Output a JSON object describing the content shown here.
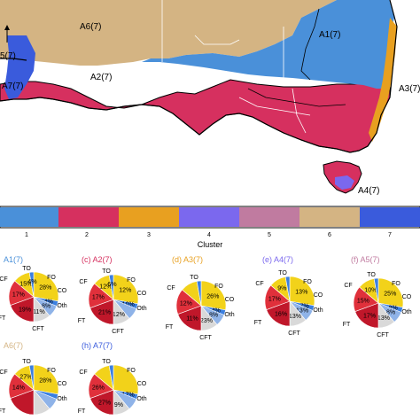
{
  "colors": {
    "cluster": [
      "#4a90d9",
      "#d6305f",
      "#e8a020",
      "#7b68ee",
      "#c07ba0",
      "#d4b483",
      "#3a5bdc"
    ],
    "coast": "#000000",
    "border": "#ffffff",
    "CF": "#f2d21a",
    "TO": "#f2d21a",
    "FO": "#3b7fe0",
    "CO": "#8fb3e8",
    "Oth": "#d9d9d9",
    "CFT": "#c0172a",
    "FT": "#e0303b"
  },
  "map": {
    "region_labels": [
      {
        "id": "A6",
        "text": "A6(7)"
      },
      {
        "id": "A1",
        "text": "A1(7)"
      },
      {
        "id": "A2",
        "text": "A2(7)"
      },
      {
        "id": "A3",
        "text": "A3(7)"
      },
      {
        "id": "A4",
        "text": "A4(7)"
      },
      {
        "id": "A7",
        "text": "A7(7)"
      },
      {
        "id": "A5",
        "text": "5(7)"
      }
    ]
  },
  "colorbar": {
    "ticks": [
      "1",
      "2",
      "3",
      "4",
      "5",
      "6",
      "7"
    ],
    "label": "Cluster"
  },
  "pies": [
    {
      "letter": "",
      "title": "A1(7)",
      "title_color": "#4a90d9",
      "slices": [
        {
          "cat": "TO",
          "pct": "28%"
        },
        {
          "cat": "FO",
          "pct": "4%"
        },
        {
          "cat": "CO",
          "pct": "8%"
        },
        {
          "cat": "Oth",
          "pct": "11%"
        },
        {
          "cat": "CFT",
          "pct": "19%"
        },
        {
          "cat": "FT",
          "pct": "17%"
        },
        {
          "cat": "CF",
          "pct": "15%"
        },
        {
          "cat": "",
          "pct": "4%"
        }
      ]
    },
    {
      "letter": "(c)",
      "title": "A2(7)",
      "title_color": "#d6305f",
      "slices": [
        {
          "cat": "TO",
          "pct": "12%"
        },
        {
          "cat": "FO",
          "pct": "10%"
        },
        {
          "cat": "CO",
          "pct": ""
        },
        {
          "cat": "Oth",
          "pct": "12%"
        },
        {
          "cat": "CFT",
          "pct": "21%"
        },
        {
          "cat": "FT",
          "pct": "17%"
        },
        {
          "cat": "CF",
          "pct": "12%"
        },
        {
          "cat": "",
          "pct": "6%"
        }
      ]
    },
    {
      "letter": "(d)",
      "title": "A3(7)",
      "title_color": "#e8a020",
      "slices": [
        {
          "cat": "TO",
          "pct": "26%"
        },
        {
          "cat": "FO",
          "pct": "4%"
        },
        {
          "cat": "CO",
          "pct": "8%"
        },
        {
          "cat": "Oth",
          "pct": "23%"
        },
        {
          "cat": "CFT",
          "pct": "11%"
        },
        {
          "cat": "FT",
          "pct": "12%"
        },
        {
          "cat": "CF",
          "pct": ""
        },
        {
          "cat": "",
          "pct": ""
        }
      ]
    },
    {
      "letter": "(e)",
      "title": "A4(7)",
      "title_color": "#7b68ee",
      "slices": [
        {
          "cat": "TO",
          "pct": "13%"
        },
        {
          "cat": "FO",
          "pct": "7%"
        },
        {
          "cat": "CO",
          "pct": "13%"
        },
        {
          "cat": "Oth",
          "pct": "13%"
        },
        {
          "cat": "CFT",
          "pct": "16%"
        },
        {
          "cat": "FT",
          "pct": "17%"
        },
        {
          "cat": "CF",
          "pct": "9%"
        },
        {
          "cat": "",
          "pct": ""
        }
      ]
    },
    {
      "letter": "(f)",
      "title": "A5(7)",
      "title_color": "#c07ba0",
      "slices": [
        {
          "cat": "TO",
          "pct": "25%"
        },
        {
          "cat": "FO",
          "pct": "8%"
        },
        {
          "cat": "CO",
          "pct": "8%"
        },
        {
          "cat": "Oth",
          "pct": "13%"
        },
        {
          "cat": "CFT",
          "pct": "17%"
        },
        {
          "cat": "FT",
          "pct": "15%"
        },
        {
          "cat": "CF",
          "pct": "10%"
        },
        {
          "cat": "",
          "pct": ""
        }
      ]
    },
    {
      "letter": "",
      "title": "A6(7)",
      "title_color": "#d4b483",
      "slices": [
        {
          "cat": "TO",
          "pct": "28%"
        },
        {
          "cat": "FO",
          "pct": ""
        },
        {
          "cat": "CO",
          "pct": ""
        },
        {
          "cat": "Oth",
          "pct": ""
        },
        {
          "cat": "CFT",
          "pct": ""
        },
        {
          "cat": "FT",
          "pct": "14%"
        },
        {
          "cat": "CF",
          "pct": "27%"
        },
        {
          "cat": "",
          "pct": ""
        }
      ]
    },
    {
      "letter": "(h)",
      "title": "A7(7)",
      "title_color": "#3a5bdc",
      "slices": [
        {
          "cat": "TO",
          "pct": ""
        },
        {
          "cat": "FO",
          "pct": "17%"
        },
        {
          "cat": "CO",
          "pct": ""
        },
        {
          "cat": "Oth",
          "pct": "9%"
        },
        {
          "cat": "CFT",
          "pct": "27%"
        },
        {
          "cat": "FT",
          "pct": "26%"
        },
        {
          "cat": "CF",
          "pct": ""
        },
        {
          "cat": "",
          "pct": ""
        }
      ]
    }
  ]
}
